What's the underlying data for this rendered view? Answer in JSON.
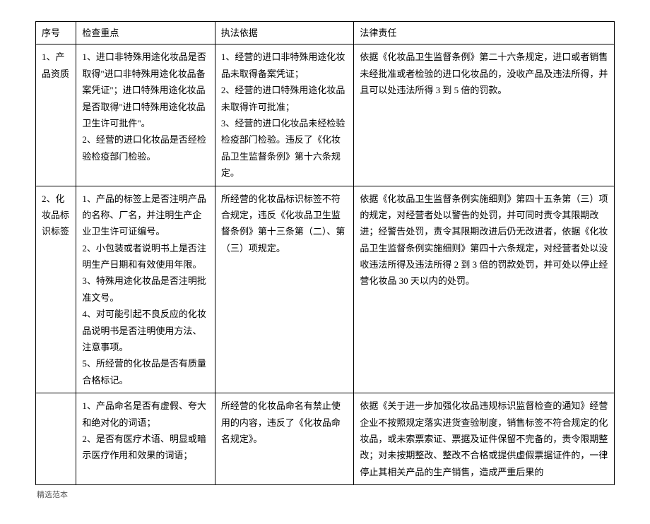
{
  "header": {
    "col1": "序号",
    "col2": "检查重点",
    "col3": "执法依据",
    "col4": "法律责任"
  },
  "rows": [
    {
      "seq": "1、产品资质",
      "check": [
        "1、进口非特殊用途化妆品是否取得\"进口非特殊用途化妆品备案凭证\"；进口特殊用途化妆品是否取得\"进口特殊用途化妆品卫生许可批件\"。",
        "2、经营的进口化妆品是否经检验检疫部门检验。"
      ],
      "basis": [
        "1、经营的进口非特殊用途化妆品未取得备案凭证；",
        "2、经营的进口特殊用途化妆品未取得许可批准；",
        "3、经营的进口化妆品未经检验检疫部门检验。违反了《化妆品卫生监督条例》第十六条规定。"
      ],
      "liability": [
        "依据《化妆品卫生监督条例》第二十六条规定，进口或者销售未经批准或者检验的进口化妆品的，没收产品及违法所得，并且可以处违法所得 3 到 5 倍的罚款。"
      ]
    },
    {
      "seq": "2、化妆品标识标签",
      "check": [
        "1、产品的标签上是否注明产品的名称、厂名，并注明生产企业卫生许可证编号。",
        "2、小包装或者说明书上是否注明生产日期和有效使用年限。",
        "3、特殊用途化妆品是否注明批准文号。",
        "4、对可能引起不良反应的化妆品说明书是否注明使用方法、注意事项。",
        "5、所经营的化妆品是否有质量合格标记。"
      ],
      "basis": [
        "所经营的化妆品标识标签不符合规定，违反《化妆品卫生监督条例》第十三条第（二）、第（三）项规定。"
      ],
      "liability": [
        "依据《化妆品卫生监督条例实施细则》第四十五条第（三）项的规定，对经营者处以警告的处罚，并可同时责令其限期改进；经警告处罚，责令其限期改进后仍无改进者，依据《化妆品卫生监督条例实施细则》第四十六条规定，对经营者处以没收违法所得及违法所得 2 到 3 倍的罚款处罚，并可处以停止经营化妆品 30 天以内的处罚。"
      ]
    },
    {
      "seq": "",
      "check": [
        "1、产品命名是否有虚假、夸大和绝对化的词语；",
        "2、是否有医疗术语、明显或暗示医疗作用和效果的词语；"
      ],
      "basis": [
        "所经营的化妆品命名有禁止使用的内容，违反了《化妆品命名规定》。"
      ],
      "liability": [
        "依据《关于进一步加强化妆品违规标识监督检查的通知》经营企业不按照规定落实进货查验制度，销售标签不符合规定的化妆品，或未索票索证、票据及证件保留不完备的，责令限期整改；对未按期整改、整改不合格或提供虚假票据证件的，一律停止其相关产品的生产销售，造成严重后果的"
      ]
    }
  ],
  "footer": "精选范本"
}
